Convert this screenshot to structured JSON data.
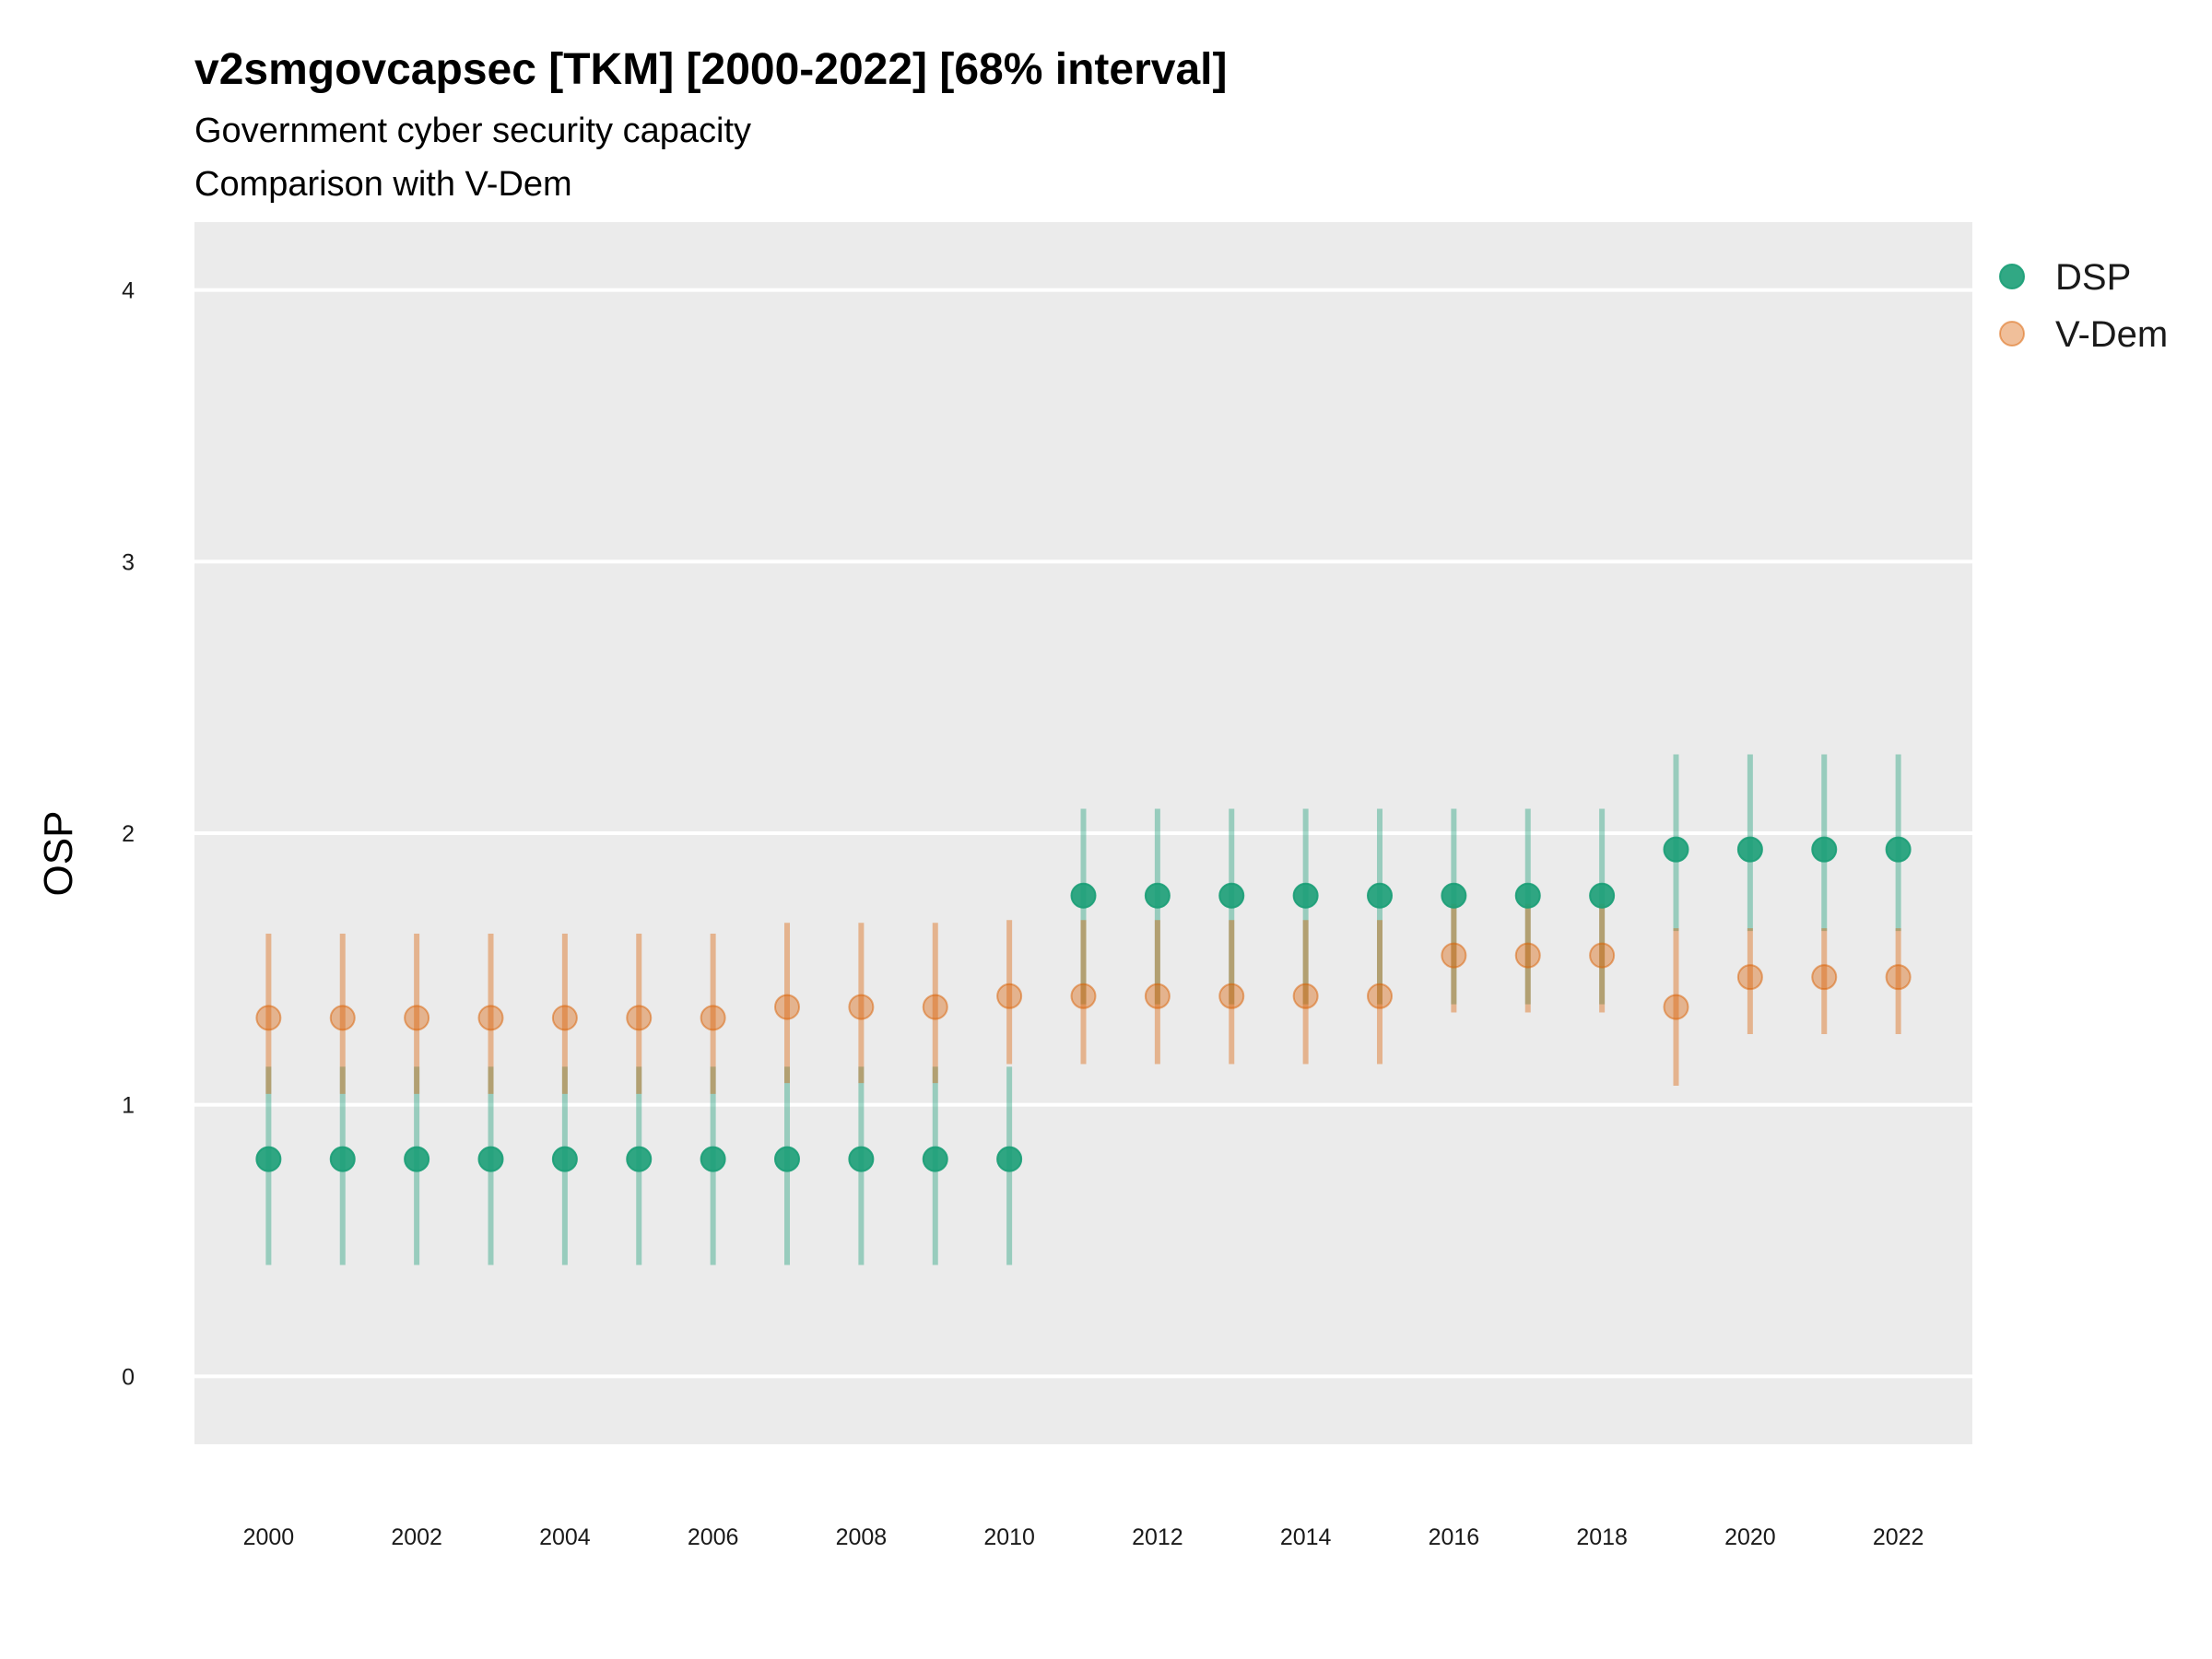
{
  "chart_data": {
    "type": "scatter",
    "title": "v2smgovcapsec [TKM] [2000-2022] [68% interval]",
    "subtitle_line1": "Government cyber security capacity",
    "subtitle_line2": "Comparison with V-Dem",
    "xlabel": "",
    "ylabel": "OSP",
    "ylim": [
      -0.25,
      4.25
    ],
    "xlim": [
      1999,
      2023
    ],
    "y_ticks": [
      0,
      1,
      2,
      3,
      4
    ],
    "x_ticks": [
      2000,
      2002,
      2004,
      2006,
      2008,
      2010,
      2012,
      2014,
      2016,
      2018,
      2020,
      2022
    ],
    "grid": true,
    "legend_position": "top-right",
    "x": [
      2000,
      2001,
      2002,
      2003,
      2004,
      2005,
      2006,
      2007,
      2008,
      2009,
      2010,
      2011,
      2012,
      2013,
      2014,
      2015,
      2016,
      2017,
      2018,
      2019,
      2020,
      2021,
      2022
    ],
    "series": [
      {
        "name": "DSP",
        "color": "#1b9e77",
        "values": [
          0.8,
          0.8,
          0.8,
          0.8,
          0.8,
          0.8,
          0.8,
          0.8,
          0.8,
          0.8,
          0.8,
          1.77,
          1.77,
          1.77,
          1.77,
          1.77,
          1.77,
          1.77,
          1.77,
          1.94,
          1.94,
          1.94,
          1.94
        ],
        "lower": [
          0.41,
          0.41,
          0.41,
          0.41,
          0.41,
          0.41,
          0.41,
          0.41,
          0.41,
          0.41,
          0.41,
          1.37,
          1.37,
          1.37,
          1.37,
          1.37,
          1.37,
          1.37,
          1.37,
          1.64,
          1.64,
          1.64,
          1.64
        ],
        "upper": [
          1.14,
          1.14,
          1.14,
          1.14,
          1.14,
          1.14,
          1.14,
          1.14,
          1.14,
          1.14,
          1.14,
          2.09,
          2.09,
          2.09,
          2.09,
          2.09,
          2.09,
          2.09,
          2.09,
          2.29,
          2.29,
          2.29,
          2.29
        ]
      },
      {
        "name": "V-Dem",
        "color": "#d95f02",
        "values": [
          1.32,
          1.32,
          1.32,
          1.32,
          1.32,
          1.32,
          1.32,
          1.36,
          1.36,
          1.36,
          1.4,
          1.4,
          1.4,
          1.4,
          1.4,
          1.4,
          1.55,
          1.55,
          1.55,
          1.36,
          1.47,
          1.47,
          1.47
        ],
        "lower": [
          1.04,
          1.04,
          1.04,
          1.04,
          1.04,
          1.04,
          1.04,
          1.08,
          1.08,
          1.08,
          1.15,
          1.15,
          1.15,
          1.15,
          1.15,
          1.15,
          1.34,
          1.34,
          1.34,
          1.07,
          1.26,
          1.26,
          1.26
        ],
        "upper": [
          1.63,
          1.63,
          1.63,
          1.63,
          1.63,
          1.63,
          1.63,
          1.67,
          1.67,
          1.67,
          1.68,
          1.68,
          1.68,
          1.68,
          1.68,
          1.68,
          1.74,
          1.74,
          1.74,
          1.65,
          1.65,
          1.65,
          1.65
        ]
      }
    ]
  }
}
